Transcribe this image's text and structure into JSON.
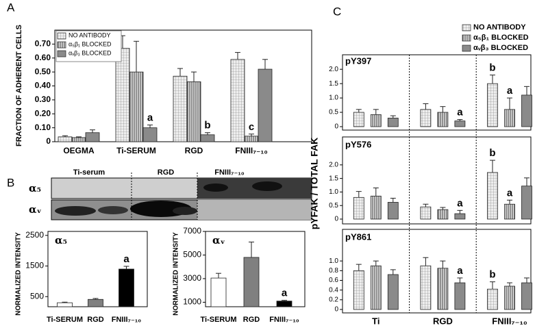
{
  "panel_labels": [
    "A",
    "B",
    "C"
  ],
  "blot": {
    "lanes": [
      "Ti-serum",
      "RGD",
      "FNIII₇₋₁₀"
    ],
    "rows": [
      "α₅",
      "αᵥ"
    ]
  },
  "chart_data": [
    {
      "type": "bar",
      "ylabel": "FRACTION OF ADHERENT CELLS",
      "categories": [
        "OEGMA",
        "Ti-SERUM",
        "RGD",
        "FNIII₇₋₁₀"
      ],
      "series": [
        {
          "name": "NO ANTIBODY",
          "color": "#eeeeee",
          "pattern": "grid",
          "values": [
            0.035,
            0.67,
            0.47,
            0.59
          ],
          "errors": [
            0.008,
            0.09,
            0.055,
            0.05
          ],
          "point_labels": [
            null,
            null,
            null,
            null
          ]
        },
        {
          "name": "α₅β₁ BLOCKED",
          "color": "#dddddd",
          "pattern": "stripes",
          "values": [
            0.03,
            0.5,
            0.43,
            0.04
          ],
          "errors": [
            0.005,
            0.22,
            0.07,
            0.015
          ],
          "point_labels": [
            null,
            null,
            null,
            "c"
          ]
        },
        {
          "name": "αᵥβ₃ BLOCKED",
          "color": "#8a8a8a",
          "pattern": "none",
          "values": [
            0.065,
            0.1,
            0.05,
            0.52
          ],
          "errors": [
            0.02,
            0.02,
            0.015,
            0.07
          ],
          "point_labels": [
            null,
            "a",
            "b",
            null
          ]
        }
      ],
      "ylim": [
        0,
        0.8
      ],
      "yticks": [
        0,
        {
          "value": 0.1,
          "label": "0.10"
        },
        {
          "value": 0.2,
          "label": "0.20"
        },
        {
          "value": 0.3,
          "label": "0.30"
        },
        {
          "value": 0.4,
          "label": "0.40"
        },
        {
          "value": 0.5,
          "label": "0.50"
        },
        {
          "value": 0.6,
          "label": "0.60"
        },
        {
          "value": 0.7,
          "label": "0.70"
        }
      ],
      "legend": "top-left",
      "grid": false
    },
    {
      "type": "bar",
      "title": "α₅",
      "ylabel": "NORMALIZED INTENSITY",
      "categories": [
        "Ti-SERUM",
        "RGD",
        "FNIII₇₋₁₀"
      ],
      "values": [
        300,
        410,
        1400
      ],
      "errors": [
        20,
        30,
        90
      ],
      "colors": [
        "#ffffff",
        "#808080",
        "#000000"
      ],
      "point_labels": [
        null,
        null,
        "a"
      ],
      "ylim": [
        170,
        2630
      ],
      "yticks": [
        500,
        1500,
        2500
      ],
      "grid": false
    },
    {
      "type": "bar",
      "title": "αᵥ",
      "ylabel": "NORMALIZED INTENSITY",
      "categories": [
        "Ti-SERUM",
        "RGD",
        "FNIII₇₋₁₀"
      ],
      "values": [
        3050,
        4800,
        1100
      ],
      "errors": [
        400,
        1300,
        60
      ],
      "colors": [
        "#ffffff",
        "#808080",
        "#000000"
      ],
      "point_labels": [
        null,
        null,
        "a"
      ],
      "ylim": [
        620,
        7000
      ],
      "yticks": [
        1000,
        3000,
        5000,
        7000
      ],
      "grid": false
    },
    {
      "type": "bar",
      "title": "pY397",
      "ylabel": "pYFAK / TOTAL FAK",
      "series": [
        {
          "name": "NO ANTIBODY",
          "color": "#eeeeee",
          "pattern": "grid",
          "values": [
            0.5,
            0.6,
            1.5
          ],
          "errors": [
            0.1,
            0.2,
            0.3
          ],
          "point_labels": [
            null,
            null,
            "b"
          ]
        },
        {
          "name": "α₅β₁ BLOCKED",
          "color": "#dddddd",
          "pattern": "stripes",
          "values": [
            0.42,
            0.5,
            0.6
          ],
          "errors": [
            0.18,
            0.2,
            0.4
          ],
          "point_labels": [
            null,
            null,
            "a"
          ]
        },
        {
          "name": "αᵥβ₃ BLOCKED",
          "color": "#8a8a8a",
          "pattern": "none",
          "values": [
            0.3,
            0.2,
            1.1
          ],
          "errors": [
            0.08,
            0.05,
            0.3
          ],
          "point_labels": [
            null,
            "a",
            null
          ]
        }
      ],
      "ylim": [
        0,
        2.1
      ],
      "yticks": [
        0,
        0.5,
        {
          "value": 1,
          "label": "1.0"
        },
        1.5,
        {
          "value": 2,
          "label": "2.0"
        }
      ],
      "legend": "top-right",
      "grid": false
    },
    {
      "type": "bar",
      "title": "pY576",
      "series": [
        {
          "color": "#eeeeee",
          "pattern": "grid",
          "values": [
            0.8,
            0.45,
            1.72
          ],
          "errors": [
            0.22,
            0.1,
            0.45
          ],
          "point_labels": [
            null,
            null,
            "b"
          ]
        },
        {
          "color": "#dddddd",
          "pattern": "stripes",
          "values": [
            0.85,
            0.35,
            0.55
          ],
          "errors": [
            0.3,
            0.08,
            0.15
          ],
          "point_labels": [
            null,
            null,
            "a"
          ]
        },
        {
          "color": "#8a8a8a",
          "pattern": "none",
          "values": [
            0.62,
            0.2,
            1.22
          ],
          "errors": [
            0.15,
            0.12,
            0.3
          ],
          "point_labels": [
            null,
            "a",
            null
          ]
        }
      ],
      "ylim": [
        0,
        2.4
      ],
      "yticks": [
        0,
        0.5,
        {
          "value": 1,
          "label": "1.0"
        },
        1.5,
        {
          "value": 2,
          "label": "2.0"
        }
      ],
      "grid": false
    },
    {
      "type": "bar",
      "title": "pY861",
      "categories": [
        "Ti",
        "RGD",
        "FNIII₇₋₁₀"
      ],
      "series": [
        {
          "color": "#eeeeee",
          "pattern": "grid",
          "values": [
            0.8,
            0.9,
            0.42
          ],
          "errors": [
            0.13,
            0.17,
            0.15
          ],
          "point_labels": [
            null,
            null,
            "b"
          ]
        },
        {
          "color": "#dddddd",
          "pattern": "stripes",
          "values": [
            0.9,
            0.85,
            0.48
          ],
          "errors": [
            0.1,
            0.15,
            0.07
          ],
          "point_labels": [
            null,
            null,
            null
          ]
        },
        {
          "color": "#8a8a8a",
          "pattern": "none",
          "values": [
            0.72,
            0.55,
            0.55
          ],
          "errors": [
            0.1,
            0.1,
            0.1
          ],
          "point_labels": [
            null,
            "a",
            null
          ]
        }
      ],
      "ylim": [
        0,
        1.2
      ],
      "yticks": [
        0,
        0.2,
        0.4,
        0.6,
        0.8,
        {
          "value": 1,
          "label": "1.0"
        }
      ],
      "grid": false
    }
  ]
}
